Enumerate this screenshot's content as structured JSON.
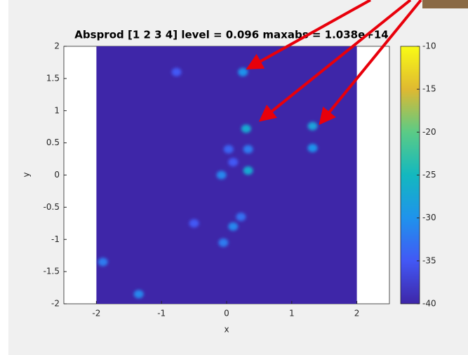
{
  "chart_data": {
    "type": "heatmap",
    "title": "Absprod [1  2  3  4] level = 0.096 maxabs = 1.038e+14",
    "x_label": "x",
    "y_label": "y",
    "xlim": [
      -2.5,
      2.5
    ],
    "ylim": [
      -2,
      2
    ],
    "xticks": [
      -2,
      -1,
      0,
      1,
      2
    ],
    "yticks": [
      -2,
      -1.5,
      -1,
      -0.5,
      0,
      0.5,
      1,
      1.5,
      2
    ],
    "data_xlim": [
      -2,
      2
    ],
    "background_value": -40,
    "clim": [
      -40,
      -10
    ],
    "cticks": [
      -40,
      -35,
      -30,
      -25,
      -20,
      -15,
      -10
    ],
    "colormap": [
      "#3e26a8",
      "#4258f5",
      "#1f93ec",
      "#13b8bf",
      "#5bcb86",
      "#dfb931",
      "#f9fb15"
    ],
    "points": {
      "x": [
        0.25,
        0.3,
        1.32,
        1.32,
        0.33,
        0.03,
        0.33,
        -0.08,
        0.22,
        0.1,
        -0.05,
        -0.5,
        -1.9,
        -1.35,
        -0.77,
        0.1
      ],
      "y": [
        1.6,
        0.72,
        0.76,
        0.42,
        0.4,
        0.4,
        0.07,
        0,
        -0.65,
        -0.8,
        -1.05,
        -0.75,
        -1.35,
        -1.85,
        1.6,
        0.2
      ],
      "values": [
        -30,
        -27,
        -28,
        -30,
        -32,
        -34,
        -27,
        -31,
        -33,
        -31,
        -32,
        -35,
        -32,
        -31,
        -35,
        -35
      ]
    }
  }
}
